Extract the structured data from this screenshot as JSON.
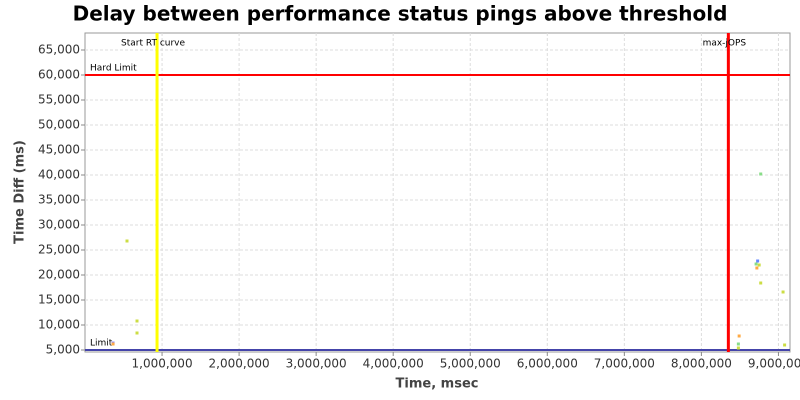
{
  "chart_data": {
    "type": "scatter",
    "title": "Delay between performance status pings above threshold",
    "x_label": "Time, msec",
    "y_label": "Time Diff (ms)",
    "x": [
      364000,
      364000,
      545000,
      675000,
      675000,
      8480000,
      8490000,
      8480000,
      8710000,
      8730000,
      8720000,
      8750000,
      8770000,
      8770000,
      9060000,
      9080000
    ],
    "values": [
      6400,
      6200,
      26800,
      10800,
      8400,
      6200,
      7800,
      5400,
      22200,
      22800,
      21400,
      22000,
      40200,
      18400,
      16600,
      6000
    ],
    "colors": [
      "#8888ff",
      "#ffaa44",
      "#ccdd44",
      "#ccdd44",
      "#ccdd44",
      "#88dd88",
      "#ffaa44",
      "#ccdd44",
      "#88dd88",
      "#6688ff",
      "#ffaa44",
      "#ccdd44",
      "#88dd88",
      "#ccdd44",
      "#ccdd44",
      "#ccdd44"
    ],
    "xlim": [
      0,
      9150000
    ],
    "ylim": [
      4600,
      68400
    ],
    "xticks": [
      {
        "value": 1000000,
        "label": "1,000,000"
      },
      {
        "value": 2000000,
        "label": "2,000,000"
      },
      {
        "value": 3000000,
        "label": "3,000,000"
      },
      {
        "value": 4000000,
        "label": "4,000,000"
      },
      {
        "value": 5000000,
        "label": "5,000,000"
      },
      {
        "value": 6000000,
        "label": "6,000,000"
      },
      {
        "value": 7000000,
        "label": "7,000,000"
      },
      {
        "value": 8000000,
        "label": "8,000,000"
      },
      {
        "value": 9000000,
        "label": "9,000,000"
      }
    ],
    "yticks": [
      {
        "value": 5000,
        "label": "5,000"
      },
      {
        "value": 10000,
        "label": "10,000"
      },
      {
        "value": 15000,
        "label": "15,000"
      },
      {
        "value": 20000,
        "label": "20,000"
      },
      {
        "value": 25000,
        "label": "25,000"
      },
      {
        "value": 30000,
        "label": "30,000"
      },
      {
        "value": 35000,
        "label": "35,000"
      },
      {
        "value": 40000,
        "label": "40,000"
      },
      {
        "value": 45000,
        "label": "45,000"
      },
      {
        "value": 50000,
        "label": "50,000"
      },
      {
        "value": 55000,
        "label": "55,000"
      },
      {
        "value": 60000,
        "label": "60,000"
      },
      {
        "value": 65000,
        "label": "65,000"
      }
    ],
    "grid": true,
    "vlines": [
      {
        "label": "Start RT curve",
        "value": 935000,
        "color": "#ffff00"
      },
      {
        "label": "max-jOPS",
        "value": 8350000,
        "color": "#ff0000"
      }
    ],
    "hlines": [
      {
        "label": "Hard Limit",
        "value": 60000,
        "color": "#ff0000"
      },
      {
        "label": "Limit",
        "value": 5000,
        "color": "#4444aa"
      }
    ]
  }
}
